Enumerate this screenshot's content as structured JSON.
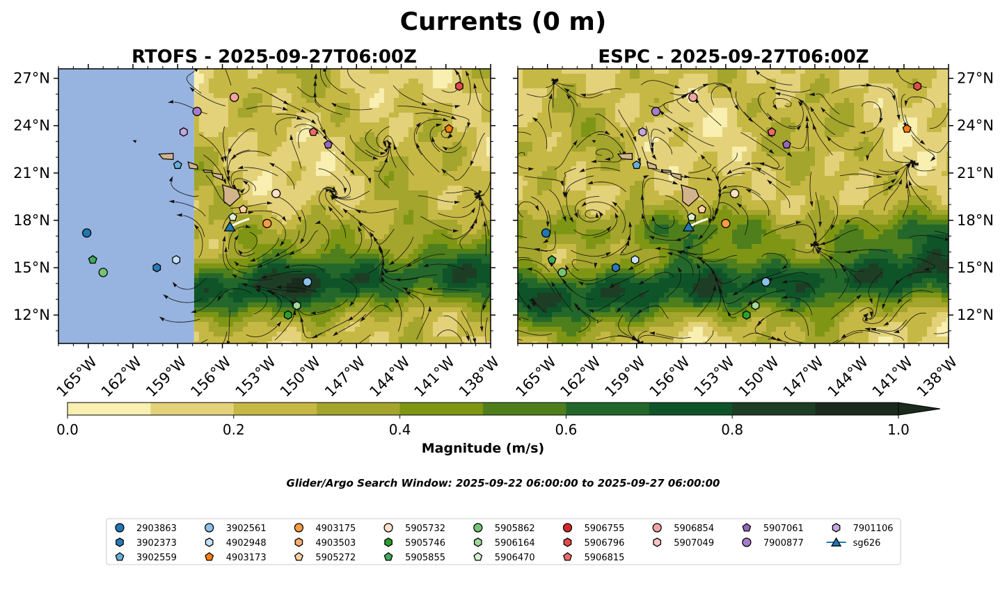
{
  "figure": {
    "suptitle": "Currents (0 m)",
    "search_window": "Glider/Argo Search Window: 2025-09-22 06:00:00 to 2025-09-27 06:00:00"
  },
  "colors": {
    "land_mask": "#97b3df",
    "island": "#d2b48c",
    "track": "#ffffff",
    "speed_levels": [
      "#f8efb0",
      "#e3d27a",
      "#c6b844",
      "#a3a52c",
      "#7f9614",
      "#4f7f1c",
      "#23682a",
      "#0f5428",
      "#1e3d25",
      "#1a2a1c"
    ]
  },
  "chart_data": [
    {
      "type": "heatmap",
      "title": "RTOFS - 2025-09-27T06:00Z",
      "xlim": [
        -167,
        -138
      ],
      "ylim": [
        10.2,
        27.6
      ],
      "x_ticks": [
        -165,
        -162,
        -159,
        -156,
        -153,
        -150,
        -147,
        -144,
        -141,
        -138
      ],
      "x_tick_labels": [
        "165°W",
        "162°W",
        "159°W",
        "156°W",
        "153°W",
        "150°W",
        "147°W",
        "144°W",
        "141°W",
        "138°W"
      ],
      "y_ticks": [
        12,
        15,
        18,
        21,
        24,
        27
      ],
      "y_tick_labels": [
        "12°N",
        "15°N",
        "18°N",
        "21°N",
        "24°N",
        "27°N"
      ],
      "data_coverage_lon_min": -157.9,
      "value_field": "surface current magnitude (m/s)",
      "floats": [
        {
          "id": "2903863",
          "lon": -165.1,
          "lat": 17.2
        },
        {
          "id": "5905855",
          "lon": -164.7,
          "lat": 15.5
        },
        {
          "id": "5905862",
          "lon": -164.0,
          "lat": 14.7
        },
        {
          "id": "3902373",
          "lon": -160.4,
          "lat": 15.0
        },
        {
          "id": "4902948",
          "lon": -159.1,
          "lat": 15.5
        },
        {
          "id": "3902559",
          "lon": -159.0,
          "lat": 21.5
        },
        {
          "id": "7901106",
          "lon": -158.6,
          "lat": 23.6
        },
        {
          "id": "7900877",
          "lon": -157.7,
          "lat": 24.9
        },
        {
          "id": "5906854",
          "lon": -155.2,
          "lat": 25.8
        },
        {
          "id": "5906470",
          "lon": -155.3,
          "lat": 18.2
        },
        {
          "id": "5905272",
          "lon": -154.6,
          "lat": 18.7
        },
        {
          "id": "5905732",
          "lon": -152.4,
          "lat": 19.7
        },
        {
          "id": "4903175",
          "lon": -153.0,
          "lat": 17.8
        },
        {
          "id": "3902561",
          "lon": -150.3,
          "lat": 14.1
        },
        {
          "id": "5906164",
          "lon": -151.0,
          "lat": 12.6
        },
        {
          "id": "5905746",
          "lon": -151.6,
          "lat": 12.0
        },
        {
          "id": "5906815",
          "lon": -149.9,
          "lat": 23.6
        },
        {
          "id": "5907061",
          "lon": -148.9,
          "lat": 22.8
        },
        {
          "id": "4903173",
          "lon": -140.8,
          "lat": 23.8
        },
        {
          "id": "5906796",
          "lon": -140.1,
          "lat": 26.5
        }
      ],
      "glider_track": {
        "id": "sg626",
        "lon": [
          -155.5,
          -154.8,
          -154.2
        ],
        "lat": [
          17.6,
          17.9,
          18.1
        ]
      }
    },
    {
      "type": "heatmap",
      "title": "ESPC - 2025-09-27T06:00Z",
      "xlim": [
        -167,
        -138
      ],
      "ylim": [
        10.2,
        27.6
      ],
      "x_ticks": [
        -165,
        -162,
        -159,
        -156,
        -153,
        -150,
        -147,
        -144,
        -141,
        -138
      ],
      "x_tick_labels": [
        "165°W",
        "162°W",
        "159°W",
        "156°W",
        "153°W",
        "150°W",
        "147°W",
        "144°W",
        "141°W",
        "138°W"
      ],
      "y_ticks": [
        12,
        15,
        18,
        21,
        24,
        27
      ],
      "y_tick_labels": [
        "12°N",
        "15°N",
        "18°N",
        "21°N",
        "24°N",
        "27°N"
      ],
      "data_coverage_lon_min": -167,
      "value_field": "surface current magnitude (m/s)",
      "floats": [
        {
          "id": "2903863",
          "lon": -165.1,
          "lat": 17.2
        },
        {
          "id": "5905855",
          "lon": -164.7,
          "lat": 15.5
        },
        {
          "id": "5905862",
          "lon": -164.0,
          "lat": 14.7
        },
        {
          "id": "3902373",
          "lon": -160.4,
          "lat": 15.0
        },
        {
          "id": "4902948",
          "lon": -159.1,
          "lat": 15.5
        },
        {
          "id": "3902559",
          "lon": -159.0,
          "lat": 21.5
        },
        {
          "id": "7901106",
          "lon": -158.6,
          "lat": 23.6
        },
        {
          "id": "7900877",
          "lon": -157.7,
          "lat": 24.9
        },
        {
          "id": "5906854",
          "lon": -155.2,
          "lat": 25.8
        },
        {
          "id": "5906470",
          "lon": -155.3,
          "lat": 18.2
        },
        {
          "id": "5905272",
          "lon": -154.6,
          "lat": 18.7
        },
        {
          "id": "5905732",
          "lon": -152.4,
          "lat": 19.7
        },
        {
          "id": "4903175",
          "lon": -153.0,
          "lat": 17.8
        },
        {
          "id": "3902561",
          "lon": -150.3,
          "lat": 14.1
        },
        {
          "id": "5906164",
          "lon": -151.0,
          "lat": 12.6
        },
        {
          "id": "5905746",
          "lon": -151.6,
          "lat": 12.0
        },
        {
          "id": "5906815",
          "lon": -149.9,
          "lat": 23.6
        },
        {
          "id": "5907061",
          "lon": -148.9,
          "lat": 22.8
        },
        {
          "id": "4903173",
          "lon": -140.8,
          "lat": 23.8
        },
        {
          "id": "5906796",
          "lon": -140.1,
          "lat": 26.5
        }
      ],
      "glider_track": {
        "id": "sg626",
        "lon": [
          -155.5,
          -154.8,
          -154.2
        ],
        "lat": [
          17.6,
          17.9,
          18.1
        ]
      }
    }
  ],
  "colorbar": {
    "label": "Magnitude (m/s)",
    "min": 0.0,
    "max": 1.0,
    "extend": "max",
    "ticks": [
      0.0,
      0.2,
      0.4,
      0.6,
      0.8,
      1.0
    ],
    "tick_labels": [
      "0.0",
      "0.2",
      "0.4",
      "0.6",
      "0.8",
      "1.0"
    ]
  },
  "legend": {
    "columns": [
      [
        {
          "label": "2903863",
          "marker": "circle",
          "color": "#1f77b4"
        },
        {
          "label": "3902373",
          "marker": "hexagon",
          "color": "#2a7ab8"
        },
        {
          "label": "3902559",
          "marker": "pentagon",
          "color": "#6aaed6"
        }
      ],
      [
        {
          "label": "3902561",
          "marker": "circle",
          "color": "#8cc2ea"
        },
        {
          "label": "4902948",
          "marker": "hexagon",
          "color": "#c6e2f7"
        },
        {
          "label": "4903173",
          "marker": "pentagon",
          "color": "#ff7f0e"
        }
      ],
      [
        {
          "label": "4903175",
          "marker": "circle",
          "color": "#fd9a44"
        },
        {
          "label": "4903503",
          "marker": "hexagon",
          "color": "#fdae6b"
        },
        {
          "label": "5905272",
          "marker": "pentagon",
          "color": "#fdd0a2"
        }
      ],
      [
        {
          "label": "5905732",
          "marker": "circle",
          "color": "#fde0c5"
        },
        {
          "label": "5905746",
          "marker": "hexagon",
          "color": "#2ca02c"
        },
        {
          "label": "5905855",
          "marker": "pentagon",
          "color": "#41ab5d"
        }
      ],
      [
        {
          "label": "5905862",
          "marker": "circle",
          "color": "#74c476"
        },
        {
          "label": "5906164",
          "marker": "hexagon",
          "color": "#a1d99b"
        },
        {
          "label": "5906470",
          "marker": "pentagon",
          "color": "#d9f0d3"
        }
      ],
      [
        {
          "label": "5906755",
          "marker": "circle",
          "color": "#d62728"
        },
        {
          "label": "5906796",
          "marker": "hexagon",
          "color": "#e34a4a"
        },
        {
          "label": "5906815",
          "marker": "pentagon",
          "color": "#f06a6a"
        }
      ],
      [
        {
          "label": "5906854",
          "marker": "circle",
          "color": "#f4a3a3"
        },
        {
          "label": "5907049",
          "marker": "hexagon",
          "color": "#fcc5c5"
        }
      ],
      [
        {
          "label": "5907061",
          "marker": "pentagon",
          "color": "#9467bd"
        },
        {
          "label": "7900877",
          "marker": "circle",
          "color": "#a57ccc"
        }
      ],
      [
        {
          "label": "7901106",
          "marker": "hexagon",
          "color": "#c5a6e0"
        },
        {
          "label": "sg626",
          "marker": "triangle-line",
          "color": "#1f77b4"
        }
      ]
    ]
  }
}
